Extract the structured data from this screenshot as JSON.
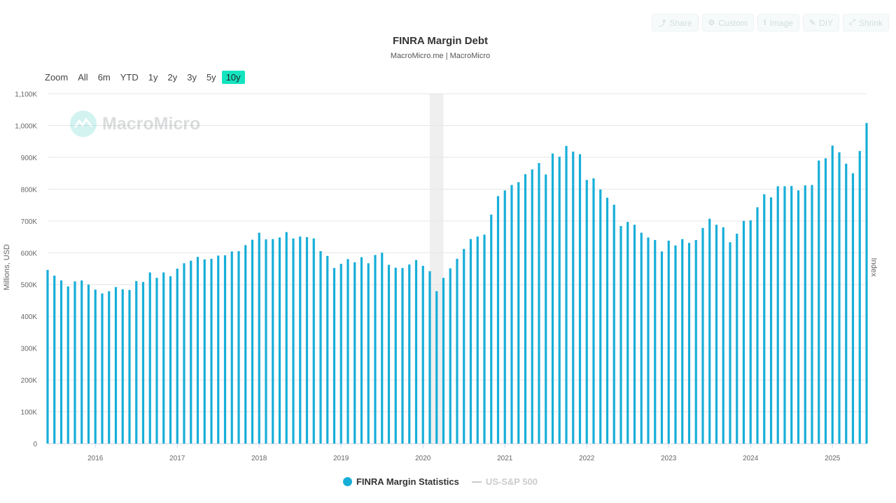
{
  "toolbar": {
    "buttons": [
      {
        "label": "Share",
        "icon": "share-icon",
        "glyph": "⤴"
      },
      {
        "label": "Custom",
        "icon": "gear-icon",
        "glyph": "⚙"
      },
      {
        "label": "Image",
        "icon": "download-icon",
        "glyph": "⭳"
      },
      {
        "label": "DIY",
        "icon": "pencil-icon",
        "glyph": "✎"
      },
      {
        "label": "Shrink",
        "icon": "shrink-icon",
        "glyph": "⤢"
      }
    ]
  },
  "range_selector": {
    "label": "Zoom",
    "options": [
      "All",
      "6m",
      "YTD",
      "1y",
      "2y",
      "3y",
      "5y",
      "10y"
    ],
    "selected": "10y"
  },
  "watermark": "MacroMicro",
  "colors": {
    "bar": "#17aed8",
    "recession": "#efefef",
    "grid": "#e6e6e6",
    "active_range": "#14e3c0"
  },
  "chart_data": {
    "type": "bar",
    "title": "FINRA Margin Debt",
    "subtitle": "MacroMicro.me | MacroMicro",
    "ylabel": "Millions, USD",
    "ylabel_right": "Index",
    "ylim": [
      0,
      1100000
    ],
    "yticks": [
      0,
      100000,
      200000,
      300000,
      400000,
      500000,
      600000,
      700000,
      800000,
      900000,
      1000000,
      1100000
    ],
    "ytick_labels": [
      "0",
      "100K",
      "200K",
      "300K",
      "400K",
      "500K",
      "600K",
      "700K",
      "800K",
      "900K",
      "1,000K",
      "1,100K"
    ],
    "xlim": [
      "2015-06",
      "2025-06"
    ],
    "xticks": [
      "2016",
      "2017",
      "2018",
      "2019",
      "2020",
      "2021",
      "2022",
      "2023",
      "2024",
      "2025"
    ],
    "shaded_period": [
      "2020-02",
      "2020-04"
    ],
    "grid": true,
    "legend_position": "bottom",
    "series": [
      {
        "name": "FINRA Margin Statistics",
        "color": "#17aed8",
        "visible": true,
        "x_start": "2015-06",
        "frequency": "monthly",
        "values": [
          546000,
          528000,
          513000,
          494000,
          510000,
          513000,
          500000,
          484000,
          472000,
          479000,
          492000,
          485000,
          483000,
          511000,
          508000,
          538000,
          521000,
          538000,
          526000,
          550000,
          567000,
          575000,
          587000,
          579000,
          581000,
          591000,
          592000,
          604000,
          605000,
          624000,
          641000,
          663000,
          642000,
          643000,
          648000,
          665000,
          645000,
          651000,
          649000,
          645000,
          605000,
          590000,
          552000,
          565000,
          580000,
          570000,
          586000,
          567000,
          593000,
          600000,
          562000,
          553000,
          552000,
          563000,
          577000,
          559000,
          542000,
          479000,
          521000,
          551000,
          581000,
          612000,
          643000,
          651000,
          657000,
          720000,
          778000,
          796000,
          813000,
          822000,
          847000,
          862000,
          882000,
          846000,
          912000,
          902000,
          936000,
          918000,
          910000,
          829000,
          834000,
          799000,
          773000,
          751000,
          684000,
          697000,
          688000,
          663000,
          648000,
          640000,
          604000,
          638000,
          623000,
          643000,
          631000,
          640000,
          678000,
          707000,
          688000,
          680000,
          633000,
          660000,
          700000,
          702000,
          743000,
          784000,
          774000,
          809000,
          809000,
          810000,
          796000,
          812000,
          813000,
          890000,
          897000,
          937000,
          916000,
          880000,
          850000,
          920000,
          1008000
        ]
      },
      {
        "name": "US-S&P 500",
        "color": "#cccccc",
        "visible": false
      }
    ]
  }
}
